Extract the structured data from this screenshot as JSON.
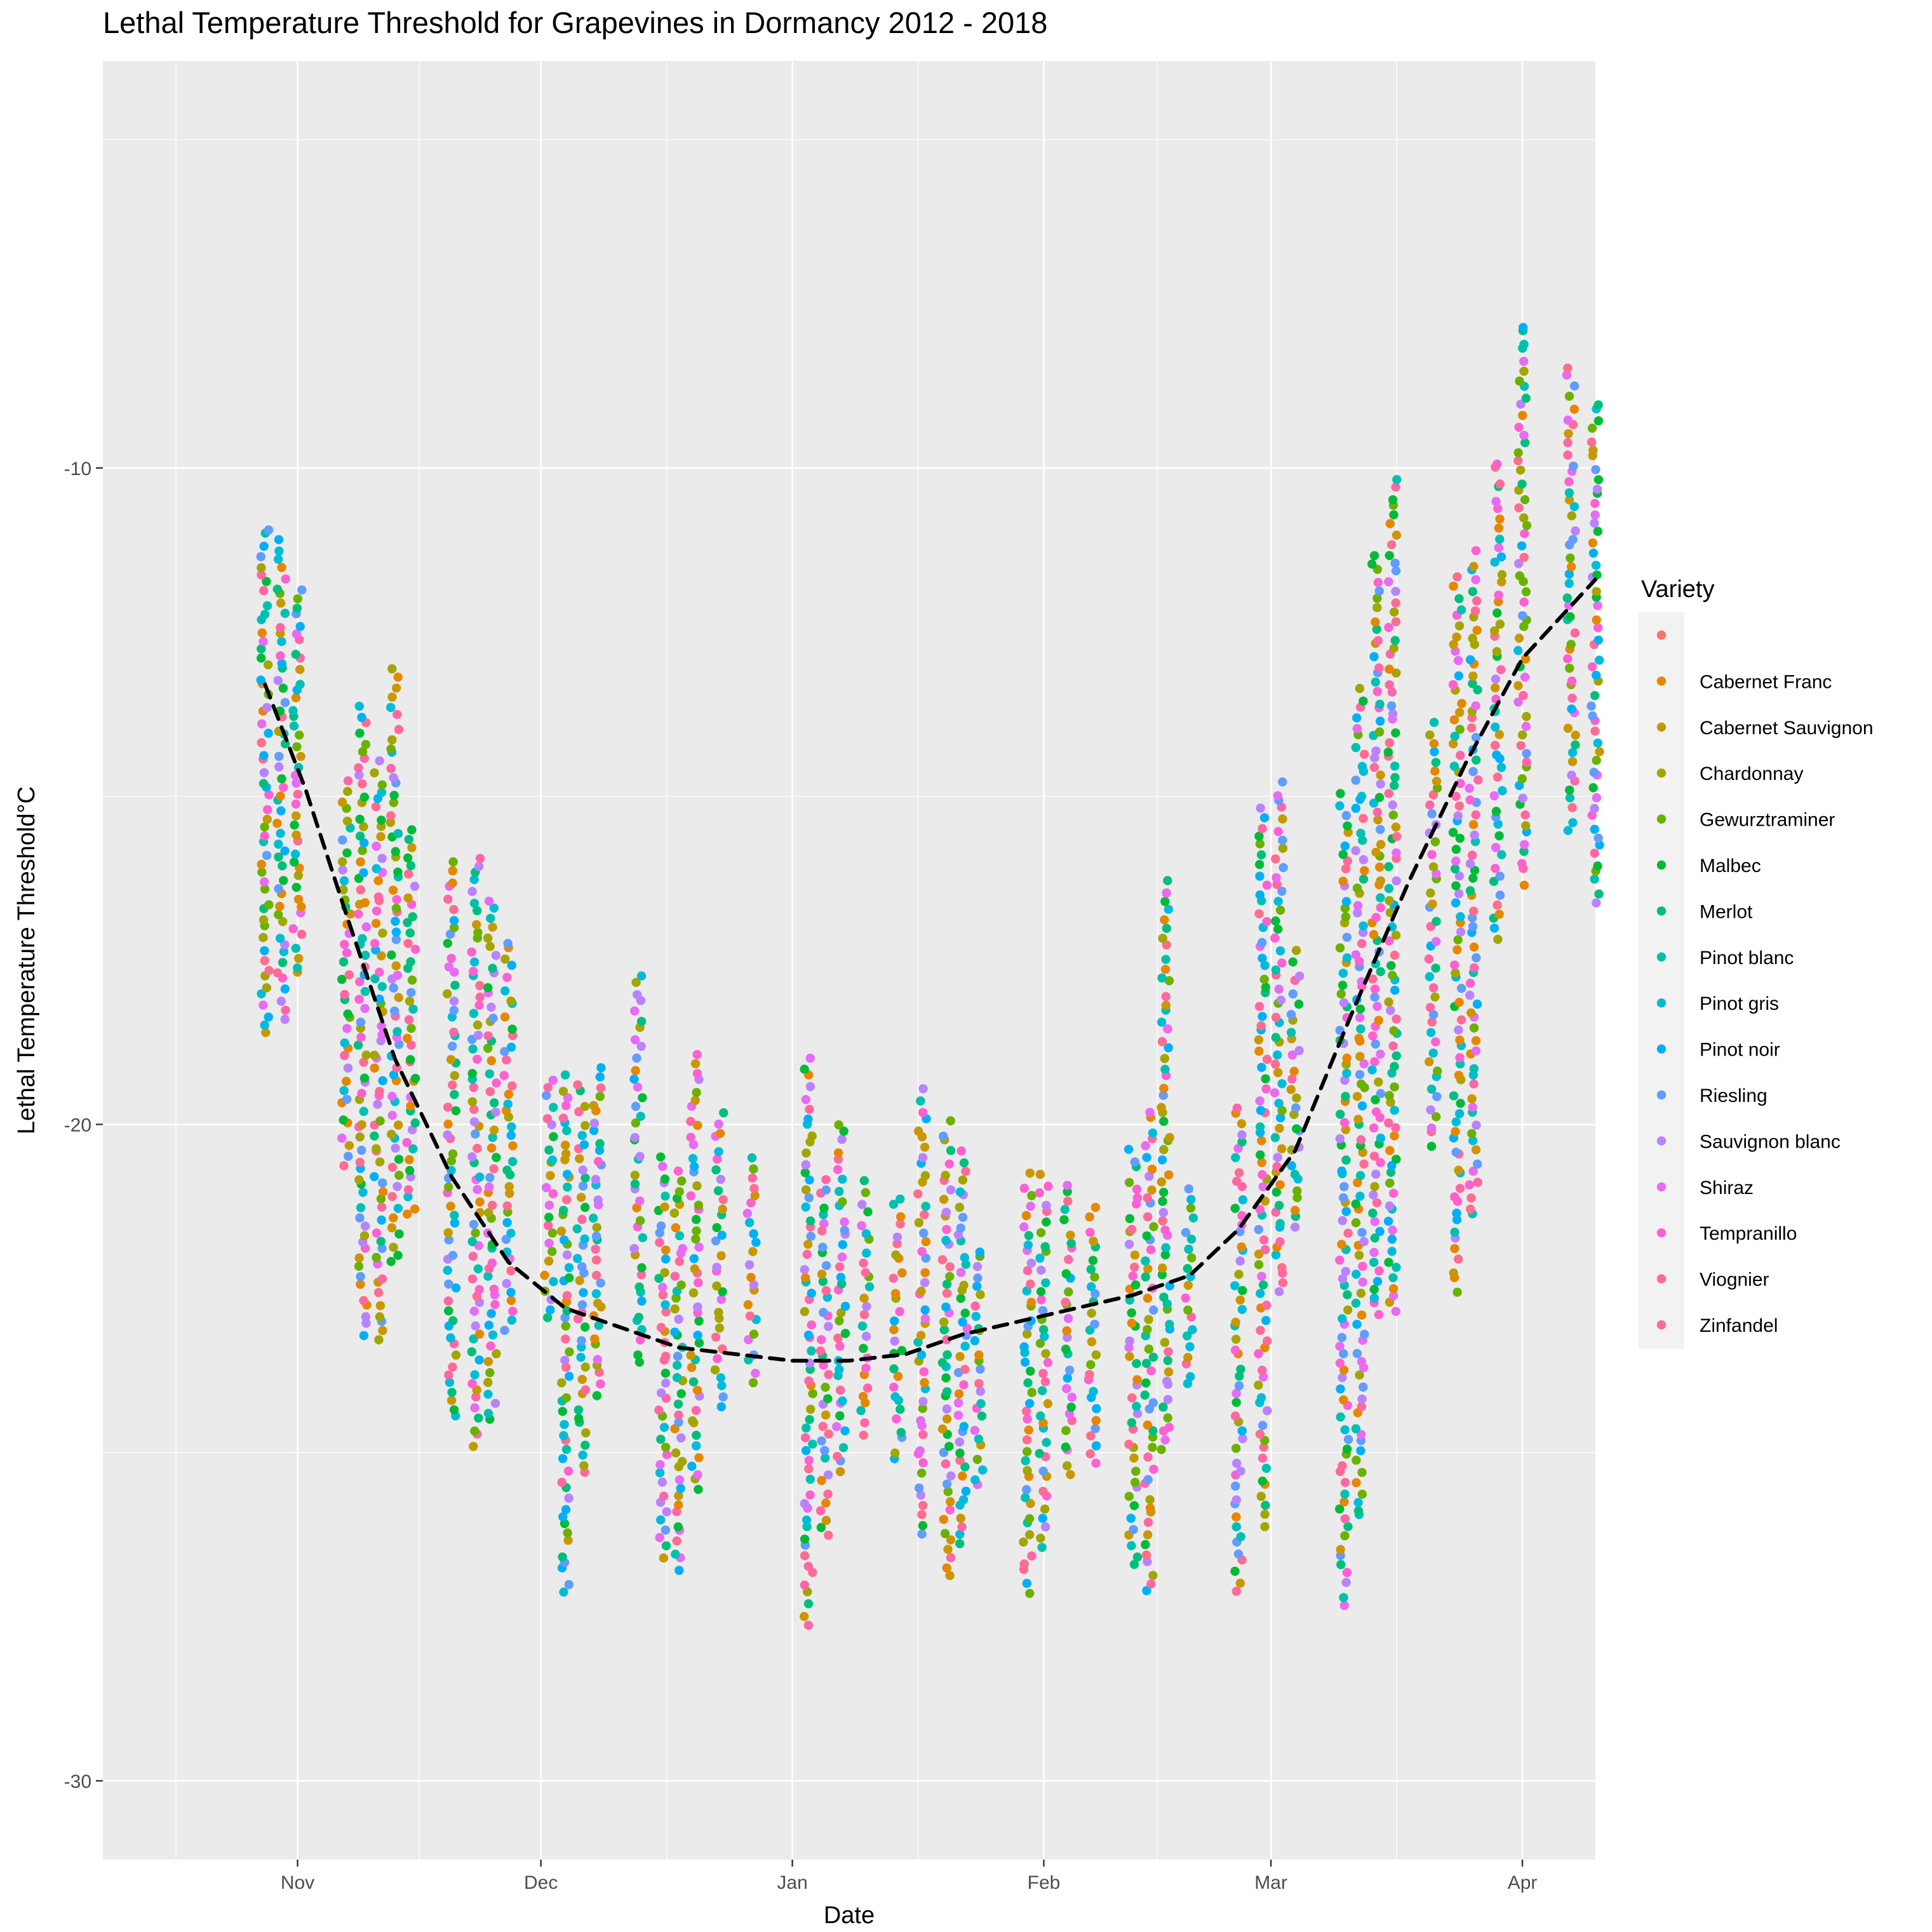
{
  "chart_data": {
    "type": "scatter",
    "title": "Lethal Temperature Threshold for Grapevines in Dormancy 2012 - 2018",
    "xlabel": "Date",
    "ylabel": "Lethal Temperature Threshold°C",
    "x_ticks": [
      "Nov",
      "Dec",
      "Jan",
      "Feb",
      "Mar",
      "Apr"
    ],
    "y_ticks": [
      -10,
      -20,
      -30
    ],
    "xlim": [
      "2012-10-08",
      "2013-04-10"
    ],
    "ylim": [
      -31.2,
      -3.8
    ],
    "grid": true,
    "legend": {
      "title": "Variety",
      "position": "right",
      "entries": [
        {
          "name": "",
          "color": "#F8766D"
        },
        {
          "name": "Cabernet Franc",
          "color": "#E58700"
        },
        {
          "name": "Cabernet Sauvignon",
          "color": "#C99800"
        },
        {
          "name": "Chardonnay",
          "color": "#A3A500"
        },
        {
          "name": "Gewurztraminer",
          "color": "#6BB100"
        },
        {
          "name": "Malbec",
          "color": "#00BA38"
        },
        {
          "name": "Merlot",
          "color": "#00BF7D"
        },
        {
          "name": "Pinot blanc",
          "color": "#00C0AF"
        },
        {
          "name": "Pinot gris",
          "color": "#00BCD8"
        },
        {
          "name": "Pinot noir",
          "color": "#00B0F6"
        },
        {
          "name": "Riesling",
          "color": "#619CFF"
        },
        {
          "name": "Sauvignon blanc",
          "color": "#B983FF"
        },
        {
          "name": "Shiraz",
          "color": "#E76BF3"
        },
        {
          "name": "Tempranillo",
          "color": "#FD61D1"
        },
        {
          "name": "Viognier",
          "color": "#FF67A4"
        },
        {
          "name": "Zinfandel",
          "color": "#FF6C91"
        }
      ]
    },
    "point_columns": [
      {
        "date": "2012-10-28",
        "min": -18.6,
        "max": -10.9
      },
      {
        "date": "2012-10-30",
        "min": -18.4,
        "max": -11.1
      },
      {
        "date": "2012-11-01",
        "min": -17.7,
        "max": -11.8
      },
      {
        "date": "2012-11-07",
        "min": -20.6,
        "max": -14.8
      },
      {
        "date": "2012-11-09",
        "min": -23.2,
        "max": -13.6
      },
      {
        "date": "2012-11-11",
        "min": -23.3,
        "max": -14.5
      },
      {
        "date": "2012-11-13",
        "min": -22.1,
        "max": -13.1
      },
      {
        "date": "2012-11-15",
        "min": -21.4,
        "max": -15.5
      },
      {
        "date": "2012-11-20",
        "min": -24.5,
        "max": -16.0
      },
      {
        "date": "2012-11-23",
        "min": -24.9,
        "max": -15.9
      },
      {
        "date": "2012-11-25",
        "min": -24.5,
        "max": -16.6
      },
      {
        "date": "2012-11-27",
        "min": -23.1,
        "max": -17.2
      },
      {
        "date": "2012-12-02",
        "min": -23.0,
        "max": -19.3
      },
      {
        "date": "2012-12-04",
        "min": -27.1,
        "max": -19.3
      },
      {
        "date": "2012-12-06",
        "min": -25.3,
        "max": -19.4
      },
      {
        "date": "2012-12-08",
        "min": -24.1,
        "max": -19.1
      },
      {
        "date": "2012-12-13",
        "min": -23.6,
        "max": -17.7
      },
      {
        "date": "2012-12-16",
        "min": -26.6,
        "max": -20.5
      },
      {
        "date": "2012-12-18",
        "min": -26.8,
        "max": -20.7
      },
      {
        "date": "2012-12-20",
        "min": -25.6,
        "max": -18.9
      },
      {
        "date": "2012-12-23",
        "min": -24.3,
        "max": -19.8
      },
      {
        "date": "2012-12-27",
        "min": -23.9,
        "max": -20.5
      },
      {
        "date": "2013-01-03",
        "min": -27.6,
        "max": -19.0
      },
      {
        "date": "2013-01-05",
        "min": -26.3,
        "max": -20.8
      },
      {
        "date": "2013-01-07",
        "min": -25.3,
        "max": -20.0
      },
      {
        "date": "2013-01-10",
        "min": -24.7,
        "max": -20.9
      },
      {
        "date": "2013-01-14",
        "min": -25.1,
        "max": -21.1
      },
      {
        "date": "2013-01-17",
        "min": -26.2,
        "max": -19.5
      },
      {
        "date": "2013-01-20",
        "min": -26.9,
        "max": -20.0
      },
      {
        "date": "2013-01-22",
        "min": -26.4,
        "max": -20.4
      },
      {
        "date": "2013-01-24",
        "min": -25.5,
        "max": -21.9
      },
      {
        "date": "2013-01-30",
        "min": -27.1,
        "max": -20.8
      },
      {
        "date": "2013-02-01",
        "min": -26.4,
        "max": -20.8
      },
      {
        "date": "2013-02-04",
        "min": -25.3,
        "max": -20.9
      },
      {
        "date": "2013-02-07",
        "min": -25.2,
        "max": -21.3
      },
      {
        "date": "2013-02-12",
        "min": -26.7,
        "max": -20.4
      },
      {
        "date": "2013-02-14",
        "min": -27.1,
        "max": -19.8
      },
      {
        "date": "2013-02-16",
        "min": -25.0,
        "max": -16.3
      },
      {
        "date": "2013-02-19",
        "min": -24.0,
        "max": -21.0
      },
      {
        "date": "2013-02-25",
        "min": -27.1,
        "max": -19.7
      },
      {
        "date": "2013-02-28",
        "min": -26.1,
        "max": -15.2
      },
      {
        "date": "2013-03-02",
        "min": -22.6,
        "max": -14.8
      },
      {
        "date": "2013-03-04",
        "min": -21.6,
        "max": -17.4
      },
      {
        "date": "2013-03-10",
        "min": -27.3,
        "max": -15.0
      },
      {
        "date": "2013-03-12",
        "min": -26.0,
        "max": -13.4
      },
      {
        "date": "2013-03-14",
        "min": -22.9,
        "max": -11.3
      },
      {
        "date": "2013-03-16",
        "min": -22.9,
        "max": -10.2
      },
      {
        "date": "2013-03-21",
        "min": -20.3,
        "max": -13.9
      },
      {
        "date": "2013-03-24",
        "min": -22.5,
        "max": -11.7
      },
      {
        "date": "2013-03-26",
        "min": -21.4,
        "max": -11.3
      },
      {
        "date": "2013-03-29",
        "min": -17.2,
        "max": -9.9
      },
      {
        "date": "2013-04-01",
        "min": -16.3,
        "max": -7.8
      },
      {
        "date": "2013-04-07",
        "min": -15.5,
        "max": -8.5
      },
      {
        "date": "2013-04-10",
        "min": -16.6,
        "max": -9.0
      }
    ],
    "trend_line": {
      "style": "dashed",
      "color": "#000000",
      "x": [
        "2012-10-28",
        "2012-11-02",
        "2012-11-07",
        "2012-11-13",
        "2012-11-20",
        "2012-11-27",
        "2012-12-04",
        "2012-12-11",
        "2012-12-18",
        "2012-12-25",
        "2013-01-01",
        "2013-01-08",
        "2013-01-15",
        "2013-01-22",
        "2013-01-29",
        "2013-02-05",
        "2013-02-12",
        "2013-02-19",
        "2013-02-25",
        "2013-03-04",
        "2013-03-11",
        "2013-03-18",
        "2013-03-25",
        "2013-04-01",
        "2013-04-10"
      ],
      "y": [
        -13.3,
        -14.9,
        -16.8,
        -19.0,
        -20.8,
        -22.1,
        -22.8,
        -23.1,
        -23.4,
        -23.5,
        -23.6,
        -23.6,
        -23.5,
        -23.2,
        -23.0,
        -22.8,
        -22.6,
        -22.3,
        -21.6,
        -20.4,
        -18.3,
        -16.3,
        -14.5,
        -12.9,
        -11.7
      ]
    }
  }
}
